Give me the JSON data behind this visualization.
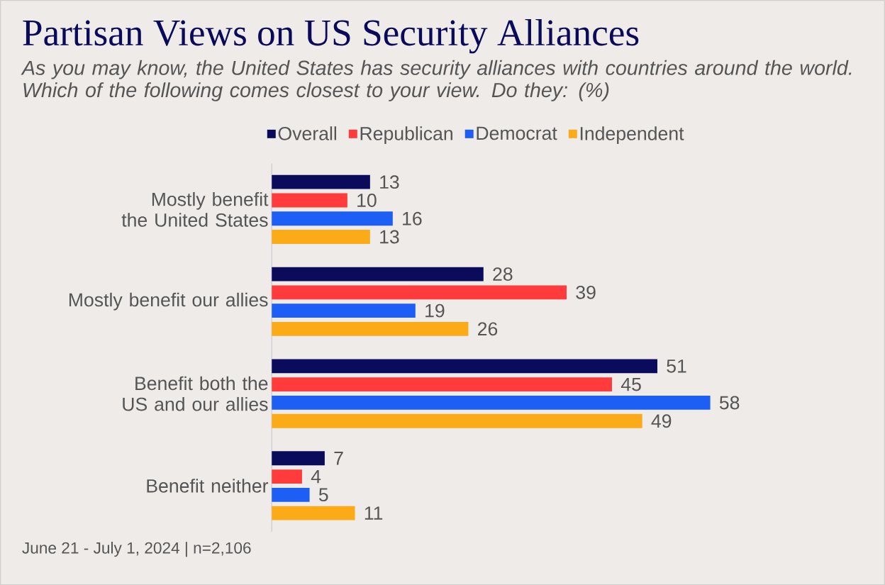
{
  "chart_data": {
    "type": "bar",
    "orientation": "horizontal",
    "title": "Partisan Views on US Security Alliances",
    "subtitle": "As you may know, the United States has security alliances with countries around the world. Which of the following comes closest to your view. Do they: (%)",
    "categories": [
      "Mostly benefit the United States",
      "Mostly benefit our allies",
      "Benefit both the US and our allies",
      "Benefit neither"
    ],
    "series": [
      {
        "name": "Overall",
        "color": "#0b0b5c",
        "values": [
          13,
          28,
          51,
          7
        ]
      },
      {
        "name": "Republican",
        "color": "#ff3b3b",
        "values": [
          10,
          39,
          45,
          4
        ]
      },
      {
        "name": "Democrat",
        "color": "#1d5ef5",
        "values": [
          16,
          19,
          58,
          5
        ]
      },
      {
        "name": "Independent",
        "color": "#fbaa18",
        "values": [
          13,
          26,
          49,
          11
        ]
      }
    ],
    "data_labels": true,
    "legend": "top",
    "annotations": [
      "June 21 - July 1, 2024 | n=2,106"
    ]
  }
}
